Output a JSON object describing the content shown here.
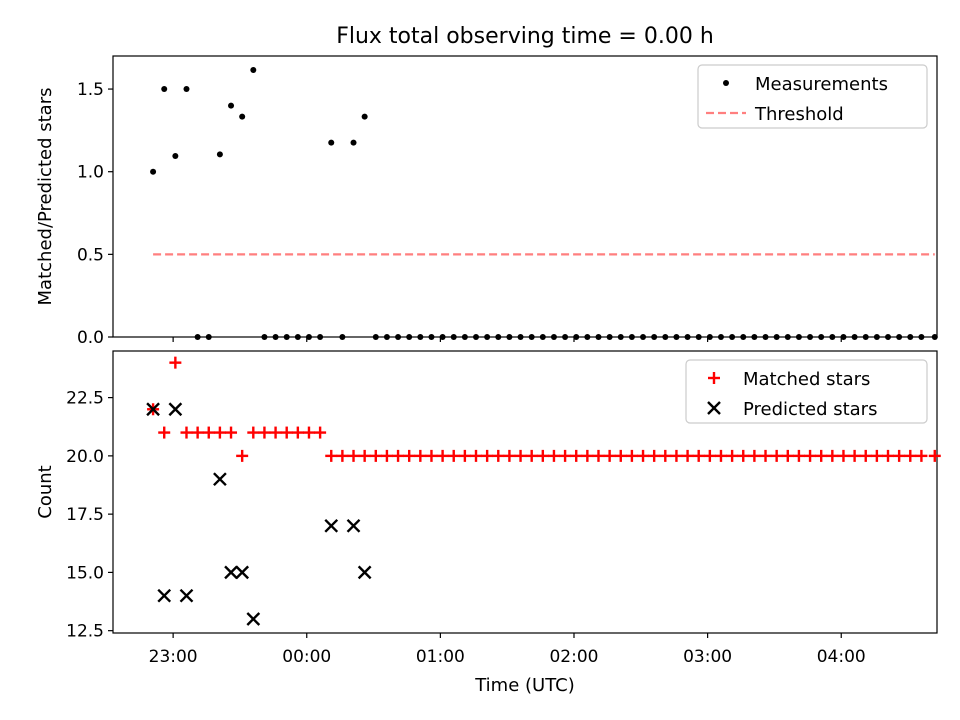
{
  "title": "Flux total observing time = 0.00 h",
  "chart_data": [
    {
      "type": "scatter",
      "ylabel": "Matched/Predicted stars",
      "xlabel": "",
      "ylim": [
        0,
        1.7
      ],
      "yticks": [
        0.0,
        0.5,
        1.0,
        1.5
      ],
      "ytick_labels": [
        "0.0",
        "0.5",
        "1.0",
        "1.5"
      ],
      "legend_position": "top-right",
      "legend": [
        {
          "label": "Measurements",
          "marker": "dot",
          "color": "#000000"
        },
        {
          "label": "Threshold",
          "marker": "dashed-line",
          "color": "#ff7f7f"
        }
      ],
      "threshold": {
        "name": "Threshold",
        "value": 0.5,
        "color": "#ff7f7f",
        "x_range": [
          "22:51",
          "04:42"
        ]
      },
      "series": [
        {
          "name": "Measurements",
          "color": "#000000",
          "points": [
            [
              "22:51",
              1.0
            ],
            [
              "22:56",
              1.5
            ],
            [
              "23:01",
              1.095
            ],
            [
              "23:06",
              1.5
            ],
            [
              "23:11",
              0.0
            ],
            [
              "23:16",
              0.0
            ],
            [
              "23:21",
              1.105
            ],
            [
              "23:26",
              1.4
            ],
            [
              "23:31",
              1.333
            ],
            [
              "23:36",
              1.615
            ],
            [
              "23:41",
              0.0
            ],
            [
              "23:46",
              0.0
            ],
            [
              "23:51",
              0.0
            ],
            [
              "23:56",
              0.0
            ],
            [
              "00:01",
              0.0
            ],
            [
              "00:06",
              0.0
            ],
            [
              "00:11",
              1.176
            ],
            [
              "00:16",
              0.0
            ],
            [
              "00:21",
              1.176
            ],
            [
              "00:26",
              1.333
            ],
            [
              "00:31",
              0.0
            ],
            [
              "00:36",
              0.0
            ],
            [
              "00:41",
              0.0
            ],
            [
              "00:46",
              0.0
            ],
            [
              "00:51",
              0.0
            ],
            [
              "00:56",
              0.0
            ],
            [
              "01:01",
              0.0
            ],
            [
              "01:06",
              0.0
            ],
            [
              "01:11",
              0.0
            ],
            [
              "01:16",
              0.0
            ],
            [
              "01:21",
              0.0
            ],
            [
              "01:26",
              0.0
            ],
            [
              "01:31",
              0.0
            ],
            [
              "01:36",
              0.0
            ],
            [
              "01:41",
              0.0
            ],
            [
              "01:46",
              0.0
            ],
            [
              "01:51",
              0.0
            ],
            [
              "01:56",
              0.0
            ],
            [
              "02:01",
              0.0
            ],
            [
              "02:06",
              0.0
            ],
            [
              "02:11",
              0.0
            ],
            [
              "02:16",
              0.0
            ],
            [
              "02:21",
              0.0
            ],
            [
              "02:26",
              0.0
            ],
            [
              "02:31",
              0.0
            ],
            [
              "02:36",
              0.0
            ],
            [
              "02:41",
              0.0
            ],
            [
              "02:46",
              0.0
            ],
            [
              "02:51",
              0.0
            ],
            [
              "02:56",
              0.0
            ],
            [
              "03:01",
              0.0
            ],
            [
              "03:06",
              0.0
            ],
            [
              "03:11",
              0.0
            ],
            [
              "03:16",
              0.0
            ],
            [
              "03:21",
              0.0
            ],
            [
              "03:26",
              0.0
            ],
            [
              "03:31",
              0.0
            ],
            [
              "03:36",
              0.0
            ],
            [
              "03:41",
              0.0
            ],
            [
              "03:46",
              0.0
            ],
            [
              "03:51",
              0.0
            ],
            [
              "03:56",
              0.0
            ],
            [
              "04:01",
              0.0
            ],
            [
              "04:06",
              0.0
            ],
            [
              "04:11",
              0.0
            ],
            [
              "04:16",
              0.0
            ],
            [
              "04:21",
              0.0
            ],
            [
              "04:26",
              0.0
            ],
            [
              "04:31",
              0.0
            ],
            [
              "04:36",
              0.0
            ],
            [
              "04:42",
              0.0
            ]
          ]
        }
      ]
    },
    {
      "type": "scatter",
      "ylabel": "Count",
      "xlabel": "Time (UTC)",
      "ylim": [
        12.4,
        24.5
      ],
      "yticks": [
        12.5,
        15.0,
        17.5,
        20.0,
        22.5
      ],
      "ytick_labels": [
        "12.5",
        "15.0",
        "17.5",
        "20.0",
        "22.5"
      ],
      "xlim": [
        "22:33",
        "04:43"
      ],
      "xticks": [
        "23:00",
        "00:00",
        "01:00",
        "02:00",
        "03:00",
        "04:00"
      ],
      "xtick_labels": [
        "23:00",
        "00:00",
        "01:00",
        "02:00",
        "03:00",
        "04:00"
      ],
      "legend_position": "top-right",
      "legend": [
        {
          "label": "Matched stars",
          "marker": "plus",
          "color": "#ff0000"
        },
        {
          "label": "Predicted stars",
          "marker": "x",
          "color": "#000000"
        }
      ],
      "series": [
        {
          "name": "Matched stars",
          "marker": "plus",
          "color": "#ff0000",
          "points": [
            [
              "22:51",
              22
            ],
            [
              "22:56",
              21
            ],
            [
              "23:01",
              24
            ],
            [
              "23:06",
              21
            ],
            [
              "23:11",
              21
            ],
            [
              "23:16",
              21
            ],
            [
              "23:21",
              21
            ],
            [
              "23:26",
              21
            ],
            [
              "23:31",
              20
            ],
            [
              "23:36",
              21
            ],
            [
              "23:41",
              21
            ],
            [
              "23:46",
              21
            ],
            [
              "23:51",
              21
            ],
            [
              "23:56",
              21
            ],
            [
              "00:01",
              21
            ],
            [
              "00:06",
              21
            ],
            [
              "00:11",
              20
            ],
            [
              "00:16",
              20
            ],
            [
              "00:21",
              20
            ],
            [
              "00:26",
              20
            ],
            [
              "00:31",
              20
            ],
            [
              "00:36",
              20
            ],
            [
              "00:41",
              20
            ],
            [
              "00:46",
              20
            ],
            [
              "00:51",
              20
            ],
            [
              "00:56",
              20
            ],
            [
              "01:01",
              20
            ],
            [
              "01:06",
              20
            ],
            [
              "01:11",
              20
            ],
            [
              "01:16",
              20
            ],
            [
              "01:21",
              20
            ],
            [
              "01:26",
              20
            ],
            [
              "01:31",
              20
            ],
            [
              "01:36",
              20
            ],
            [
              "01:41",
              20
            ],
            [
              "01:46",
              20
            ],
            [
              "01:51",
              20
            ],
            [
              "01:56",
              20
            ],
            [
              "02:01",
              20
            ],
            [
              "02:06",
              20
            ],
            [
              "02:11",
              20
            ],
            [
              "02:16",
              20
            ],
            [
              "02:21",
              20
            ],
            [
              "02:26",
              20
            ],
            [
              "02:31",
              20
            ],
            [
              "02:36",
              20
            ],
            [
              "02:41",
              20
            ],
            [
              "02:46",
              20
            ],
            [
              "02:51",
              20
            ],
            [
              "02:56",
              20
            ],
            [
              "03:01",
              20
            ],
            [
              "03:06",
              20
            ],
            [
              "03:11",
              20
            ],
            [
              "03:16",
              20
            ],
            [
              "03:21",
              20
            ],
            [
              "03:26",
              20
            ],
            [
              "03:31",
              20
            ],
            [
              "03:36",
              20
            ],
            [
              "03:41",
              20
            ],
            [
              "03:46",
              20
            ],
            [
              "03:51",
              20
            ],
            [
              "03:56",
              20
            ],
            [
              "04:01",
              20
            ],
            [
              "04:06",
              20
            ],
            [
              "04:11",
              20
            ],
            [
              "04:16",
              20
            ],
            [
              "04:21",
              20
            ],
            [
              "04:26",
              20
            ],
            [
              "04:31",
              20
            ],
            [
              "04:36",
              20
            ],
            [
              "04:42",
              20
            ]
          ]
        },
        {
          "name": "Predicted stars",
          "marker": "x",
          "color": "#000000",
          "points": [
            [
              "22:51",
              22
            ],
            [
              "22:56",
              14
            ],
            [
              "23:01",
              22
            ],
            [
              "23:06",
              14
            ],
            [
              "23:21",
              19
            ],
            [
              "23:26",
              15
            ],
            [
              "23:31",
              15
            ],
            [
              "23:36",
              13
            ],
            [
              "00:11",
              17
            ],
            [
              "00:21",
              17
            ],
            [
              "00:26",
              15
            ]
          ]
        }
      ]
    }
  ]
}
